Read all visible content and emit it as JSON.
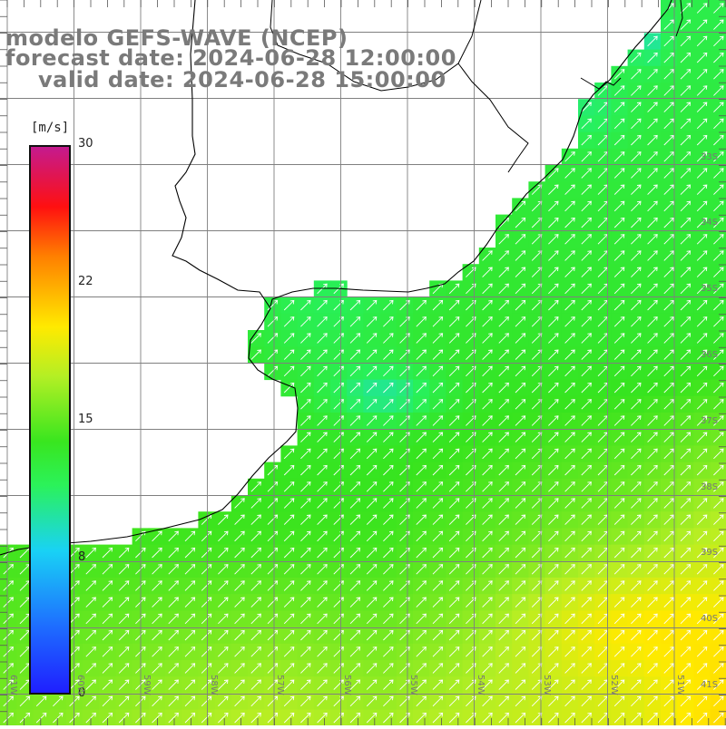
{
  "title": {
    "line1": "modelo GEFS-WAVE (NCEP)",
    "line2": "forecast date: 2024-06-28 12:00:00",
    "line3": "valid date: 2024-06-28 15:00:00"
  },
  "colorbar": {
    "unit": "[m/s]",
    "ticks": [
      "30",
      "22",
      "15",
      "8",
      "0"
    ],
    "tick_values": [
      30,
      22,
      15,
      8,
      0
    ]
  },
  "grid": {
    "lat_labels": [
      "33S",
      "34S",
      "35S",
      "36S",
      "37S",
      "38S",
      "39S",
      "40S",
      "41S"
    ],
    "lat_values": [
      -33,
      -34,
      -35,
      -36,
      -37,
      -38,
      -39,
      -40,
      -41
    ],
    "lon_labels": [
      "61W",
      "60W",
      "59W",
      "58W",
      "57W",
      "56W",
      "55W",
      "54W",
      "53W",
      "52W",
      "51W"
    ],
    "lon_values": [
      -61,
      -60,
      -59,
      -58,
      -57,
      -56,
      -55,
      -54,
      -53,
      -52,
      -51
    ]
  },
  "colors": {
    "land": "#ffffff",
    "gridline": "#7f7f7f",
    "coast": "#000000",
    "arrow": "#ffffff",
    "title": "#7a7a7a"
  },
  "wind_direction_deg": 45
}
